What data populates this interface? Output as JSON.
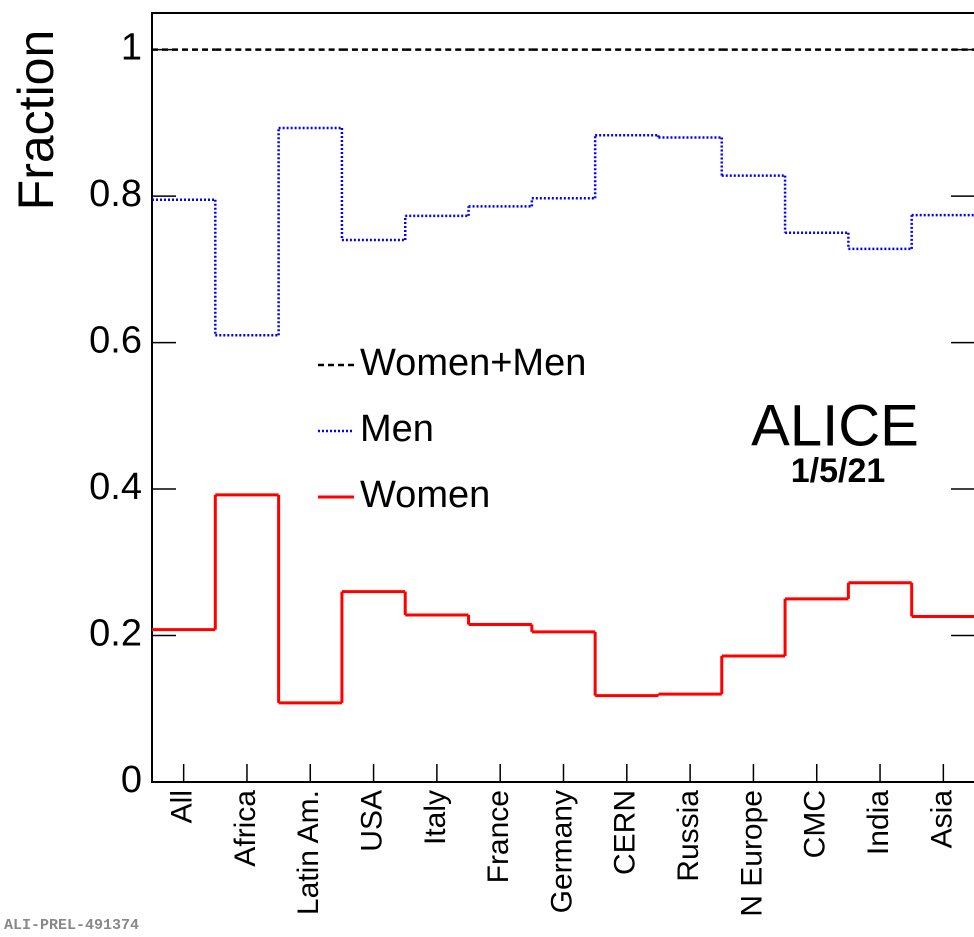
{
  "chart_data": {
    "type": "step",
    "y_label": "Fraction",
    "categories": [
      "All",
      "Africa",
      "Latin Am.",
      "USA",
      "Italy",
      "France",
      "Germany",
      "CERN",
      "Russia",
      "N Europe",
      "CMC",
      "India",
      "Asia"
    ],
    "series": [
      {
        "name": "Women+Men",
        "color": "#000000",
        "style": "dashed",
        "values": [
          1,
          1,
          1,
          1,
          1,
          1,
          1,
          1,
          1,
          1,
          1,
          1,
          1
        ]
      },
      {
        "name": "Men",
        "color": "#0000ff",
        "style": "dotted",
        "values": [
          0.795,
          0.61,
          0.893,
          0.74,
          0.773,
          0.786,
          0.797,
          0.883,
          0.88,
          0.828,
          0.75,
          0.728,
          0.774
        ]
      },
      {
        "name": "Women",
        "color": "#ff0000",
        "style": "solid",
        "values": [
          0.208,
          0.392,
          0.108,
          0.26,
          0.228,
          0.215,
          0.205,
          0.118,
          0.12,
          0.172,
          0.25,
          0.272,
          0.226
        ]
      }
    ],
    "ylim": [
      0,
      1.05
    ],
    "yticks": [
      0,
      0.2,
      0.4,
      0.6,
      0.8,
      1
    ],
    "annotations": [
      "ALICE",
      "1/5/21",
      "ALI-PREL-491374"
    ]
  }
}
